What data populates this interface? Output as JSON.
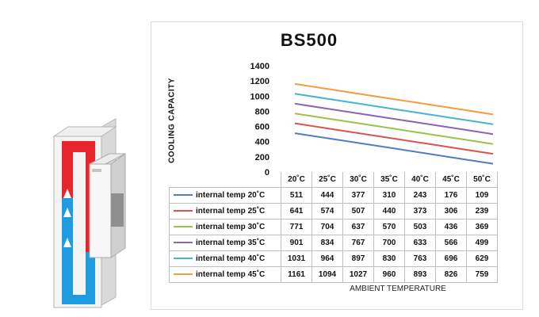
{
  "chart_data": {
    "type": "line",
    "title": "BS500",
    "ylabel": "COOLING  CAPACITY",
    "xlabel": "AMBIENT TEMPERATURE",
    "categories": [
      "20˚C",
      "25˚C",
      "30˚C",
      "35˚C",
      "40˚C",
      "45˚C",
      "50˚C"
    ],
    "yticks": [
      "0",
      "200",
      "400",
      "600",
      "800",
      "1000",
      "1200",
      "1400"
    ],
    "ylim": [
      0,
      1400
    ],
    "grid": false,
    "legend": "table-left",
    "series": [
      {
        "name": "internal temp 20˚C",
        "color": "#4f7ec4",
        "values": [
          511,
          444,
          377,
          310,
          243,
          176,
          109
        ]
      },
      {
        "name": "internal temp 25˚C",
        "color": "#d9534f",
        "values": [
          641,
          574,
          507,
          440,
          373,
          306,
          239
        ]
      },
      {
        "name": "internal temp 30˚C",
        "color": "#9bc34a",
        "values": [
          771,
          704,
          637,
          570,
          503,
          436,
          369
        ]
      },
      {
        "name": "internal temp 35˚C",
        "color": "#8e63b5",
        "values": [
          901,
          834,
          767,
          700,
          633,
          566,
          499
        ]
      },
      {
        "name": "internal temp 40˚C",
        "color": "#46b4cf",
        "values": [
          1031,
          964,
          897,
          830,
          763,
          696,
          629
        ]
      },
      {
        "name": "internal temp 45˚C",
        "color": "#f59b42",
        "values": [
          1161,
          1094,
          1027,
          960,
          893,
          826,
          759
        ]
      }
    ]
  }
}
